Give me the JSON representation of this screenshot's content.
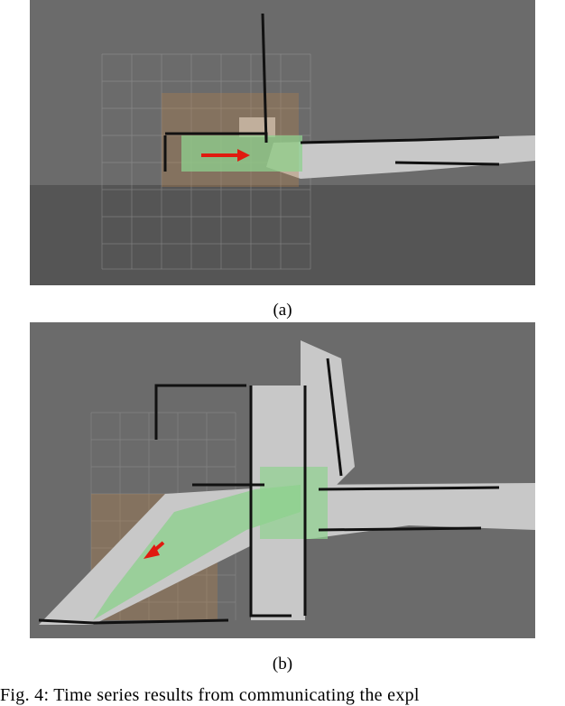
{
  "figure": {
    "panels": [
      {
        "label": "(a)",
        "image": "rviz-map-early"
      },
      {
        "label": "(b)",
        "image": "rviz-map-later"
      }
    ],
    "caption": "Fig. 4: Time series results from communicating the expl"
  },
  "colors": {
    "background_upper": "#6b6b6b",
    "background_lower": "#555555",
    "free_space": "#c8c8c8",
    "obstacle": "#111111",
    "frontier_orange": "#b5824a",
    "explored_green": "#8fd18f",
    "robot_arrow": "#e01a0f",
    "grid": "#a0a0a0"
  }
}
